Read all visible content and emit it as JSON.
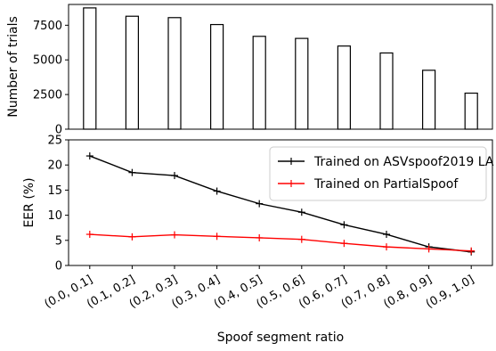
{
  "chart_data": [
    {
      "type": "bar",
      "title": "",
      "xlabel": "",
      "ylabel": "Number of trials",
      "ylim": [
        0,
        9000
      ],
      "yticks": [
        0,
        2500,
        5000,
        7500
      ],
      "ytick_labels": [
        "0",
        "2500",
        "5000",
        "7500"
      ],
      "categories": [
        "(0.0, 0.1]",
        "(0.1, 0.2]",
        "(0.2, 0.3]",
        "(0.3, 0.4]",
        "(0.4, 0.5]",
        "(0.5, 0.6]",
        "(0.6, 0.7]",
        "(0.7, 0.8]",
        "(0.8, 0.9]",
        "(0.9, 1.0]"
      ],
      "values": [
        8750,
        8150,
        8050,
        7550,
        6700,
        6550,
        6000,
        5500,
        4250,
        2600
      ],
      "bar_fill": "#ffffff",
      "bar_edge": "#000000",
      "grid": false
    },
    {
      "type": "line",
      "title": "",
      "xlabel": "Spoof segment ratio",
      "ylabel": "EER (%)",
      "ylim": [
        0,
        25
      ],
      "yticks": [
        0,
        5,
        10,
        15,
        20,
        25
      ],
      "ytick_labels": [
        "0",
        "5",
        "10",
        "15",
        "20",
        "25"
      ],
      "categories": [
        "(0.0, 0.1]",
        "(0.1, 0.2]",
        "(0.2, 0.3]",
        "(0.3, 0.4]",
        "(0.4, 0.5]",
        "(0.5, 0.6]",
        "(0.6, 0.7]",
        "(0.7, 0.8]",
        "(0.8, 0.9]",
        "(0.9, 1.0]"
      ],
      "series": [
        {
          "name": "Trained on ASVspoof2019 LA",
          "color": "#000000",
          "values": [
            21.8,
            18.5,
            17.9,
            14.8,
            12.3,
            10.6,
            8.1,
            6.2,
            3.7,
            2.7
          ]
        },
        {
          "name": "Trained on PartialSpoof",
          "color": "#ff0000",
          "values": [
            6.2,
            5.7,
            6.1,
            5.8,
            5.5,
            5.2,
            4.4,
            3.7,
            3.3,
            2.9
          ]
        }
      ],
      "legend_position": "top-right",
      "grid": false
    }
  ]
}
